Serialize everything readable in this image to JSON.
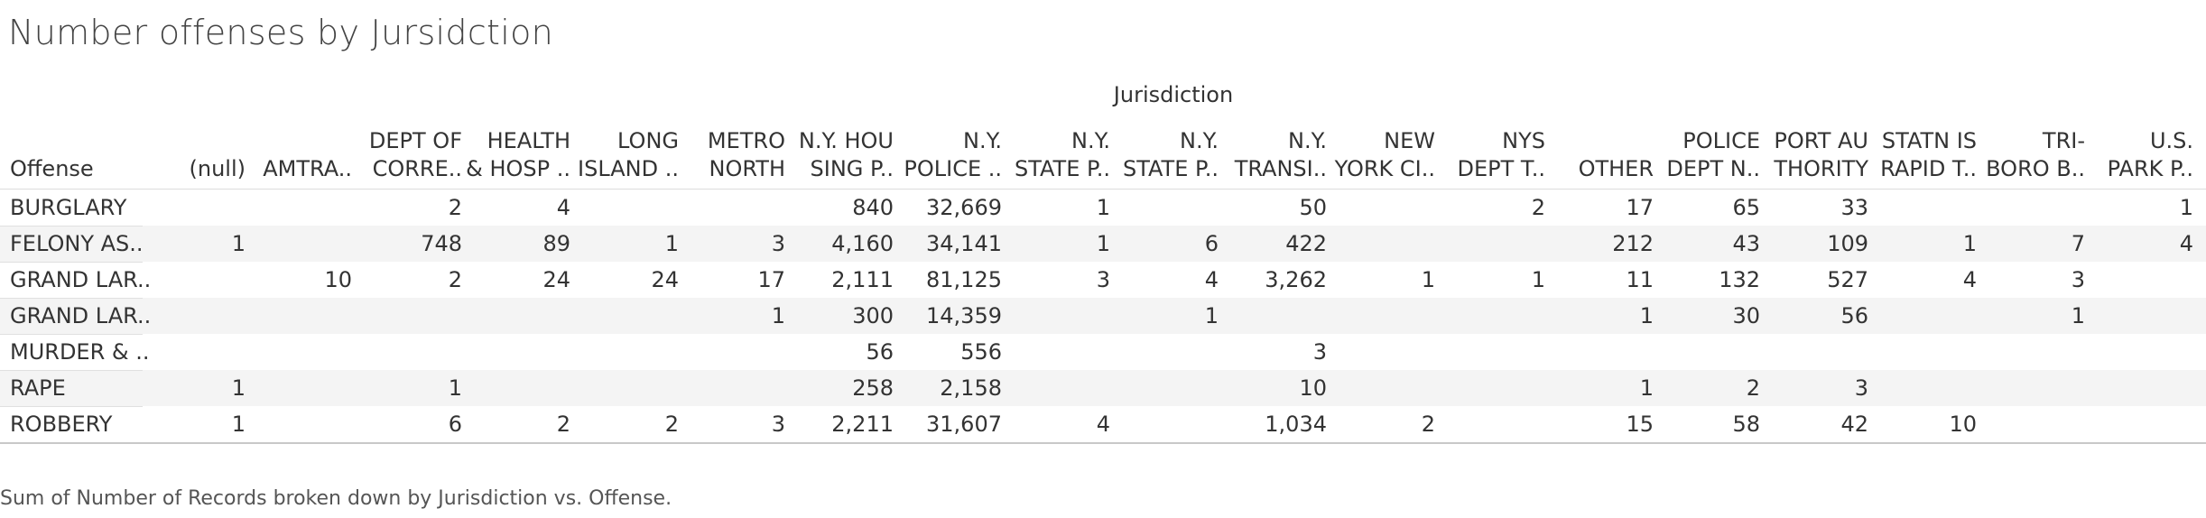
{
  "title": "Number offenses by Jursidction",
  "caption": "Sum of Number of Records broken down by Jurisdiction vs. Offense.",
  "chart_data": {
    "type": "table",
    "title": "Number offenses by Jursidction",
    "column_dimension": "Jurisdiction",
    "row_dimension": "Offense",
    "columns": [
      [
        "(null)"
      ],
      [
        "AMTRA.."
      ],
      [
        "DEPT OF",
        "CORRE.."
      ],
      [
        "HEALTH",
        "& HOSP .."
      ],
      [
        "LONG",
        "ISLAND .."
      ],
      [
        "METRO",
        "NORTH"
      ],
      [
        "N.Y. HOU",
        "SING P.."
      ],
      [
        "N.Y.",
        "POLICE .."
      ],
      [
        "N.Y.",
        "STATE P.."
      ],
      [
        "N.Y.",
        "STATE P.."
      ],
      [
        "N.Y.",
        "TRANSI.."
      ],
      [
        "NEW",
        "YORK CI.."
      ],
      [
        "NYS",
        "DEPT T.."
      ],
      [
        "OTHER"
      ],
      [
        "POLICE",
        "DEPT N.."
      ],
      [
        "PORT AU",
        "THORITY"
      ],
      [
        "STATN IS",
        "RAPID T.."
      ],
      [
        "TRI-",
        "BORO B.."
      ],
      [
        "U.S.",
        "PARK P.."
      ]
    ],
    "rows": [
      {
        "offense": "BURGLARY",
        "values": [
          "",
          "",
          "2",
          "4",
          "",
          "",
          "840",
          "32,669",
          "1",
          "",
          "50",
          "",
          "2",
          "17",
          "65",
          "33",
          "",
          "",
          "1"
        ]
      },
      {
        "offense": "FELONY AS..",
        "values": [
          "1",
          "",
          "748",
          "89",
          "1",
          "3",
          "4,160",
          "34,141",
          "1",
          "6",
          "422",
          "",
          "",
          "212",
          "43",
          "109",
          "1",
          "7",
          "4"
        ]
      },
      {
        "offense": "GRAND LAR..",
        "values": [
          "",
          "10",
          "2",
          "24",
          "24",
          "17",
          "2,111",
          "81,125",
          "3",
          "4",
          "3,262",
          "1",
          "1",
          "11",
          "132",
          "527",
          "4",
          "3",
          ""
        ]
      },
      {
        "offense": "GRAND LAR..",
        "values": [
          "",
          "",
          "",
          "",
          "",
          "1",
          "300",
          "14,359",
          "",
          "1",
          "",
          "",
          "",
          "1",
          "30",
          "56",
          "",
          "1",
          ""
        ]
      },
      {
        "offense": "MURDER & ..",
        "values": [
          "",
          "",
          "",
          "",
          "",
          "",
          "56",
          "556",
          "",
          "",
          "3",
          "",
          "",
          "",
          "",
          "",
          "",
          "",
          ""
        ]
      },
      {
        "offense": "RAPE",
        "values": [
          "1",
          "",
          "1",
          "",
          "",
          "",
          "258",
          "2,158",
          "",
          "",
          "10",
          "",
          "",
          "1",
          "2",
          "3",
          "",
          "",
          ""
        ]
      },
      {
        "offense": "ROBBERY",
        "values": [
          "1",
          "",
          "6",
          "2",
          "2",
          "3",
          "2,211",
          "31,607",
          "4",
          "",
          "1,034",
          "2",
          "",
          "15",
          "58",
          "42",
          "10",
          "",
          ""
        ]
      }
    ]
  }
}
